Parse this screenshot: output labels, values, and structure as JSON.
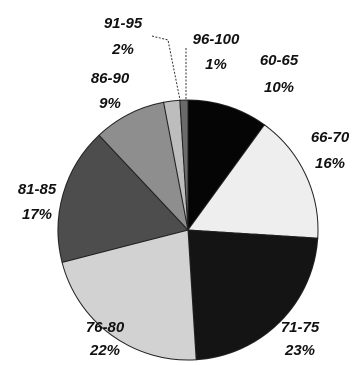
{
  "chart_data": {
    "type": "pie",
    "title": "",
    "slices": [
      {
        "label": "60-65",
        "value": 10,
        "value_label": "10%",
        "color": "#050505"
      },
      {
        "label": "66-70",
        "value": 16,
        "value_label": "16%",
        "color": "#eeeeee"
      },
      {
        "label": "71-75",
        "value": 23,
        "value_label": "23%",
        "color": "#141414"
      },
      {
        "label": "76-80",
        "value": 22,
        "value_label": "22%",
        "color": "#d2d2d2"
      },
      {
        "label": "81-85",
        "value": 17,
        "value_label": "17%",
        "color": "#4d4d4d"
      },
      {
        "label": "86-90",
        "value": 9,
        "value_label": "9%",
        "color": "#8e8e8e"
      },
      {
        "label": "91-95",
        "value": 2,
        "value_label": "2%",
        "color": "#bdbdbd"
      },
      {
        "label": "96-100",
        "value": 1,
        "value_label": "1%",
        "color": "#6a6a6a"
      }
    ],
    "legend": "none",
    "start": "top, clockwise"
  }
}
